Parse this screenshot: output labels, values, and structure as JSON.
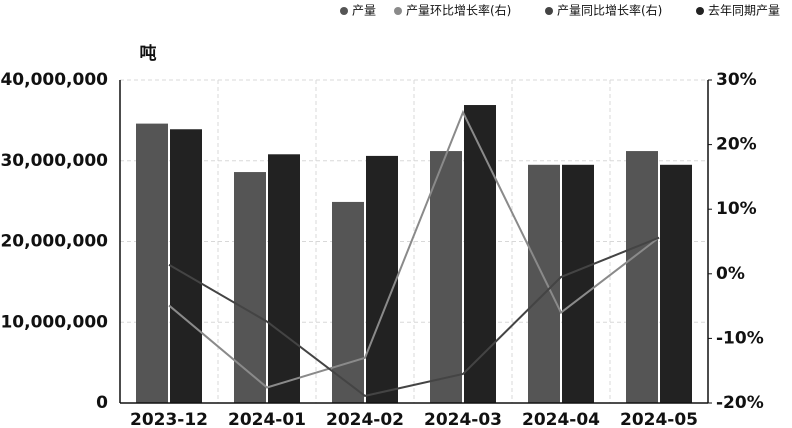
{
  "chart_data": {
    "type": "bar-line",
    "y_label": "吨",
    "categories": [
      "2023-12",
      "2024-01",
      "2024-02",
      "2024-03",
      "2024-04",
      "2024-05"
    ],
    "series": [
      {
        "name": "产量",
        "type": "bar",
        "color": "#555555",
        "values": [
          34600000,
          28600000,
          24900000,
          31200000,
          29500000,
          31200000
        ]
      },
      {
        "name": "产量环比增长率(右)",
        "type": "line",
        "axis": "y2",
        "color": "#8a8a8a",
        "values": [
          -4.9,
          -17.6,
          -13,
          25,
          -6,
          5.6
        ]
      },
      {
        "name": "产量同比增长率(右)",
        "type": "line",
        "axis": "y2",
        "color": "#444444",
        "values": [
          1.4,
          -7.4,
          -18.9,
          -15.5,
          -0.5,
          5.6
        ]
      },
      {
        "name": "去年同期产量",
        "type": "bar",
        "color": "#222222",
        "values": [
          33900000,
          30800000,
          30600000,
          36900000,
          29500000,
          29500000
        ]
      }
    ],
    "ylim": [
      0,
      40000000
    ],
    "yticks": [
      0,
      {
        "value": 10000000,
        "label": "10,000,000"
      },
      {
        "value": 20000000,
        "label": "20,000,000"
      },
      {
        "value": 30000000,
        "label": "30,000,000"
      },
      {
        "value": 40000000,
        "label": "40,000,000"
      }
    ],
    "y2lim": [
      -20,
      30
    ],
    "y2ticks": [
      {
        "value": -20,
        "label": "-20%"
      },
      {
        "value": -10,
        "label": "-10%"
      },
      {
        "value": 0,
        "label": "0%"
      },
      {
        "value": 10,
        "label": "10%"
      },
      {
        "value": 20,
        "label": "20%"
      },
      {
        "value": 30,
        "label": "30%"
      }
    ],
    "grid": true
  }
}
